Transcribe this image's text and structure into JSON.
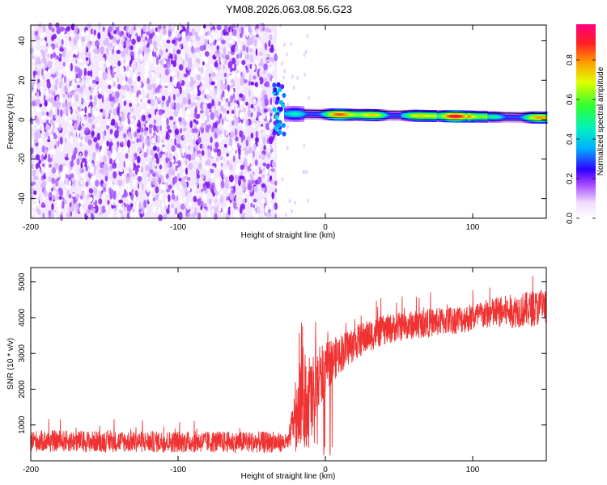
{
  "title": "YM08.2026.063.08.56.G23",
  "chart_data": [
    {
      "type": "heatmap",
      "xlabel": "Height of straight line (km)",
      "ylabel": "Frequency (Hz)",
      "xlim": [
        -200,
        150
      ],
      "ylim": [
        -50,
        48
      ],
      "xticks": [
        -200,
        -100,
        0,
        100
      ],
      "yticks": [
        -40,
        -20,
        0,
        20,
        40
      ],
      "colorbar": {
        "label": "Normalized spectral amplitude",
        "range": [
          0,
          0.98
        ],
        "ticks": [
          0.0,
          0.2,
          0.4,
          0.6,
          0.8
        ],
        "tick_labels": [
          "0.0",
          "0.2",
          "0.4",
          "0.6",
          "0.8"
        ]
      },
      "regions": [
        {
          "name": "noise",
          "x_range": [
            -200,
            -33
          ],
          "y_range": [
            -50,
            48
          ],
          "amplitude_range": [
            0.0,
            0.2
          ]
        },
        {
          "name": "transition",
          "x_range": [
            -35,
            -28
          ],
          "y_range": [
            -10,
            18
          ],
          "amplitude_range": [
            0.1,
            0.45
          ]
        },
        {
          "name": "signal-ridge",
          "x_range": [
            -28,
            150
          ],
          "center_freq_hz": [
            3,
            1
          ],
          "amplitude_range": [
            0.3,
            0.98
          ]
        }
      ]
    },
    {
      "type": "line",
      "xlabel": "Height of straight line (km)",
      "ylabel": "SNR (10 * v/v)",
      "xlim": [
        -200,
        150
      ],
      "ylim": [
        0,
        5400
      ],
      "xticks": [
        -200,
        -100,
        0,
        100
      ],
      "yticks": [
        1000,
        2000,
        3000,
        4000,
        5000
      ],
      "color": "#f03232",
      "series": [
        {
          "name": "SNR",
          "x": [
            -200,
            -180,
            -160,
            -140,
            -120,
            -100,
            -80,
            -60,
            -40,
            -25,
            -20,
            -15,
            -10,
            -5,
            0,
            5,
            10,
            20,
            30,
            40,
            50,
            60,
            70,
            80,
            90,
            100,
            110,
            120,
            130,
            140,
            150
          ],
          "mean": [
            550,
            550,
            540,
            540,
            530,
            530,
            530,
            520,
            520,
            500,
            1500,
            1800,
            1600,
            2200,
            2600,
            2800,
            3000,
            3300,
            3500,
            3650,
            3750,
            3800,
            3850,
            3900,
            3950,
            4000,
            4100,
            4150,
            4200,
            4250,
            4300
          ],
          "spread": [
            300,
            300,
            300,
            300,
            300,
            300,
            300,
            300,
            300,
            250,
            900,
            1400,
            1400,
            1000,
            700,
            600,
            550,
            500,
            450,
            420,
            400,
            400,
            400,
            400,
            400,
            400,
            420,
            450,
            480,
            500,
            500
          ]
        }
      ]
    }
  ]
}
